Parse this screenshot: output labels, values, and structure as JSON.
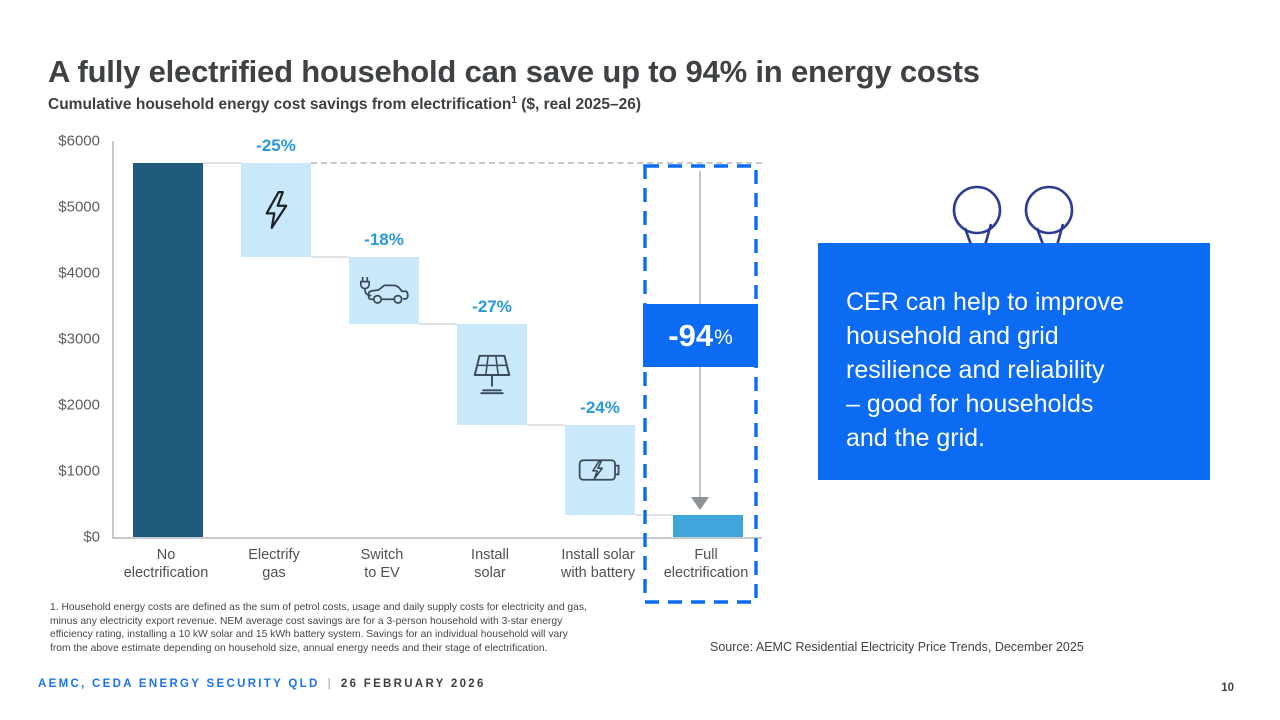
{
  "slide": {
    "title": "A fully electrified household can save up to 94% in energy costs",
    "subtitle": {
      "text": "Cumulative household energy cost savings from electrification",
      "superscript": "1",
      "suffix": " ($, real 2025–26)"
    },
    "footnote_lines": [
      "1. Household energy costs are defined as the sum of petrol costs, usage and daily supply costs for electricity and gas,",
      "minus any electricity export revenue. NEM average cost savings are for a 3-person household with 3-star energy",
      "efficiency rating, installing a 10 kW solar and 15 kWh battery system. Savings for an individual household will vary",
      "from the above estimate depending on household size, annual energy needs and their stage of electrification."
    ],
    "source": "Source: AEMC Residential Electricity Price Trends, December 2025",
    "footer": {
      "brand": "AEMC, CEDA ENERGY SECURITY QLD",
      "separator": "|",
      "date": "26 FEBRUARY 2026",
      "page_number": "10"
    }
  },
  "callout": {
    "lines": [
      "CER can help to improve",
      "household and grid",
      "resilience and reliability",
      "– good for households",
      "and the grid.",
      ""
    ],
    "quote_icons": [
      "quote-balloon-icon",
      "quote-balloon-icon"
    ],
    "background_color": "#0b6bf2",
    "text_color": "#ffffff",
    "quote_outline_color": "#2d3c92"
  },
  "chart_data": {
    "type": "waterfall",
    "title": "Cumulative household energy cost savings from electrification ($, real 2025–26)",
    "ylim": [
      0,
      6000
    ],
    "yticks": [
      {
        "label": "$6000",
        "value": 6000
      },
      {
        "label": "$5000",
        "value": 5000
      },
      {
        "label": "$4000",
        "value": 4000
      },
      {
        "label": "$3000",
        "value": 3000
      },
      {
        "label": "$2000",
        "value": 2000
      },
      {
        "label": "$1000",
        "value": 1000
      },
      {
        "label": "$0",
        "value": 0
      }
    ],
    "grid": false,
    "categories": [
      "No electrification",
      "Electrify gas",
      "Switch to EV",
      "Install solar",
      "Install solar with battery",
      "Full electrification"
    ],
    "category_lines": [
      [
        "No",
        "electrification"
      ],
      [
        "Electrify",
        "gas"
      ],
      [
        "Switch",
        "to EV"
      ],
      [
        "Install",
        "solar"
      ],
      [
        "Install solar",
        "with battery"
      ],
      [
        "Full",
        "electrification"
      ]
    ],
    "steps": [
      {
        "category": "No electrification",
        "type": "start",
        "value": 5660,
        "color": "#1f5a7d"
      },
      {
        "category": "Electrify gas",
        "type": "decrease",
        "pct_label": "-25%",
        "value": -1415,
        "icon": "lightning-icon",
        "color": "#c9e8fa"
      },
      {
        "category": "Switch to EV",
        "type": "decrease",
        "pct_label": "-18%",
        "value": -1020,
        "icon": "ev-car-icon",
        "color": "#c9e8fa"
      },
      {
        "category": "Install solar",
        "type": "decrease",
        "pct_label": "-27%",
        "value": -1530,
        "icon": "solar-panel-icon",
        "color": "#c9e8fa"
      },
      {
        "category": "Install solar with battery",
        "type": "decrease",
        "pct_label": "-24%",
        "value": -1360,
        "icon": "battery-icon",
        "color": "#c9e8fa"
      },
      {
        "category": "Full electrification",
        "type": "total",
        "value": 335,
        "color": "#3fa5da"
      }
    ],
    "reference_line": {
      "level": 5660,
      "style": "dashed",
      "color": "#c8c8c8"
    },
    "annotation": {
      "badge_value": "-94",
      "badge_suffix": "%",
      "badge_color": "#0b6bf2",
      "highlight_column": "Full electrification",
      "highlight_style": "blue dashed outline with downward grey arrow"
    },
    "colors": {
      "start_bar": "#1f5a7d",
      "decrease_bar": "#c9e8fa",
      "total_bar": "#3fa5da",
      "pct_label": "#2898d8"
    },
    "legend": null
  }
}
